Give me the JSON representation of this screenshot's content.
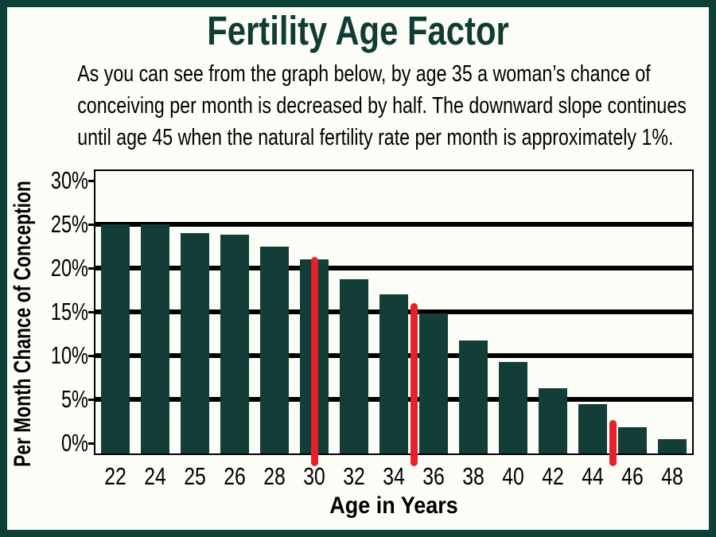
{
  "title": "Fertility Age Factor",
  "subtitle": {
    "line1": "As you can see from the graph below, by age 35 a woman’s chance of",
    "line2": "conceiving per month is decreased by half. The downward slope continues",
    "line3": "until age 45 when the natural fertility rate per month is approximately 1%."
  },
  "colors": {
    "frame_green": "#0d4138",
    "bar_green": "#133e37",
    "title_green": "#113c32",
    "marker_red": "#e8202a",
    "grid_black": "#000000"
  },
  "chart_data": {
    "type": "bar",
    "title": "Fertility Age Factor",
    "xlabel": "Age in Years",
    "ylabel": "Per Month Chance of Conception",
    "unit": "%",
    "categories": [
      "22",
      "24",
      "25",
      "26",
      "28",
      "30",
      "32",
      "34",
      "36",
      "38",
      "40",
      "42",
      "44",
      "46",
      "48"
    ],
    "values": [
      25,
      25,
      24,
      23.8,
      22.5,
      21,
      18.7,
      17,
      14.8,
      11.7,
      9.3,
      6.3,
      4.5,
      1.8,
      0.5
    ],
    "y_ticks": [
      "30%",
      "25%",
      "20%",
      "15%",
      "10%",
      "5%",
      "0%"
    ],
    "y_tick_values": [
      30,
      25,
      20,
      15,
      10,
      5,
      0
    ],
    "gridline_values": [
      25,
      20,
      15,
      10,
      5
    ],
    "ylim": [
      -1.5,
      31
    ],
    "grid": "horizontal",
    "legend": "none",
    "bar_color": "#133e37",
    "markers": [
      {
        "age": "30",
        "style": "red-vertical-line",
        "placement": "bar-center",
        "slot": 5,
        "top_pct": 21.3
      },
      {
        "age": "35",
        "style": "red-vertical-line",
        "placement": "between-bars",
        "boundary": 8,
        "top_pct": 16.0
      },
      {
        "age": "45",
        "style": "red-vertical-line",
        "placement": "between-bars",
        "boundary": 13,
        "top_pct": 2.6
      }
    ]
  }
}
